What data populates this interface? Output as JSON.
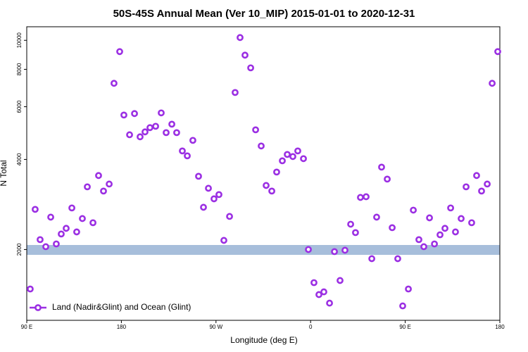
{
  "chart_data": {
    "type": "scatter",
    "title": "50S-45S Annual Mean (Ver 10_MIP)   2015-01-01 to 2020-12-31",
    "x_label": "Longitude (deg E)",
    "y_label": "N Total",
    "xlim": [
      90,
      540
    ],
    "xticks": [
      {
        "value": 90,
        "label": "90 E"
      },
      180,
      {
        "value": 270,
        "label": "90 W"
      },
      {
        "value": 360,
        "label": "0"
      },
      {
        "value": 450,
        "label": "90 E"
      },
      {
        "value": 540,
        "label": "180"
      }
    ],
    "ylim": [
      1160,
      11100
    ],
    "y_log": true,
    "yticks": [
      2000,
      4000,
      6000,
      8000,
      10000
    ],
    "legend": "lower left",
    "series": [
      {
        "name": "Land (Nadir&Glint) and Ocean (Glint)",
        "color": "#9b2fe3",
        "x": [
          93.3,
          98.0,
          102.7,
          108.1,
          112.8,
          118.1,
          122.8,
          127.5,
          132.9,
          137.5,
          142.9,
          147.6,
          153.0,
          158.3,
          163.0,
          168.4,
          173.0,
          178.4,
          182.4,
          187.8,
          192.5,
          197.8,
          202.5,
          207.2,
          212.6,
          217.9,
          222.6,
          228.0,
          232.6,
          238.0,
          242.7,
          248.0,
          253.4,
          258.1,
          262.8,
          268.1,
          272.8,
          277.5,
          282.9,
          288.2,
          292.9,
          297.6,
          303.0,
          307.7,
          313.0,
          317.7,
          323.1,
          327.7,
          333.1,
          337.8,
          343.1,
          347.8,
          353.2,
          357.9,
          363.2,
          367.9,
          372.6,
          378.0,
          382.7,
          388.0,
          392.7,
          398.1,
          402.7,
          407.4,
          412.8,
          418.2,
          422.8,
          427.5,
          432.9,
          437.6,
          442.9,
          447.6,
          453.0,
          457.7,
          463.0,
          467.7,
          473.1,
          477.8,
          483.1,
          487.8,
          493.2,
          497.8,
          503.2,
          507.9,
          513.2,
          517.9,
          522.6,
          528.0,
          532.7,
          538.0
        ],
        "values": [
          1476,
          2724,
          2158,
          2044,
          2566,
          2088,
          2254,
          2354,
          2754,
          2290,
          2538,
          3240,
          2458,
          3534,
          3136,
          3310,
          7184,
          9168,
          5628,
          4836,
          5692,
          4760,
          4944,
          5108,
          5162,
          5722,
          4916,
          5246,
          4916,
          4270,
          4112,
          4632,
          3514,
          2768,
          3204,
          2954,
          3052,
          2146,
          2580,
          6694,
          10216,
          8922,
          8092,
          5024,
          4436,
          3274,
          3136,
          3630,
          3958,
          4156,
          4090,
          4270,
          4024,
          2000,
          1550,
          1414,
          1444,
          1324,
          1968,
          1576,
          1989,
          2430,
          2278,
          2986,
          3002,
          1864,
          2566,
          3770,
          3438,
          2366,
          1864,
          1296,
          1476,
          2708,
          2158,
          2044,
          2552,
          2088,
          2240,
          2354,
          2754,
          2290,
          2538,
          3240,
          2458,
          3534,
          3136,
          3310,
          7184,
          9168
        ]
      }
    ]
  }
}
